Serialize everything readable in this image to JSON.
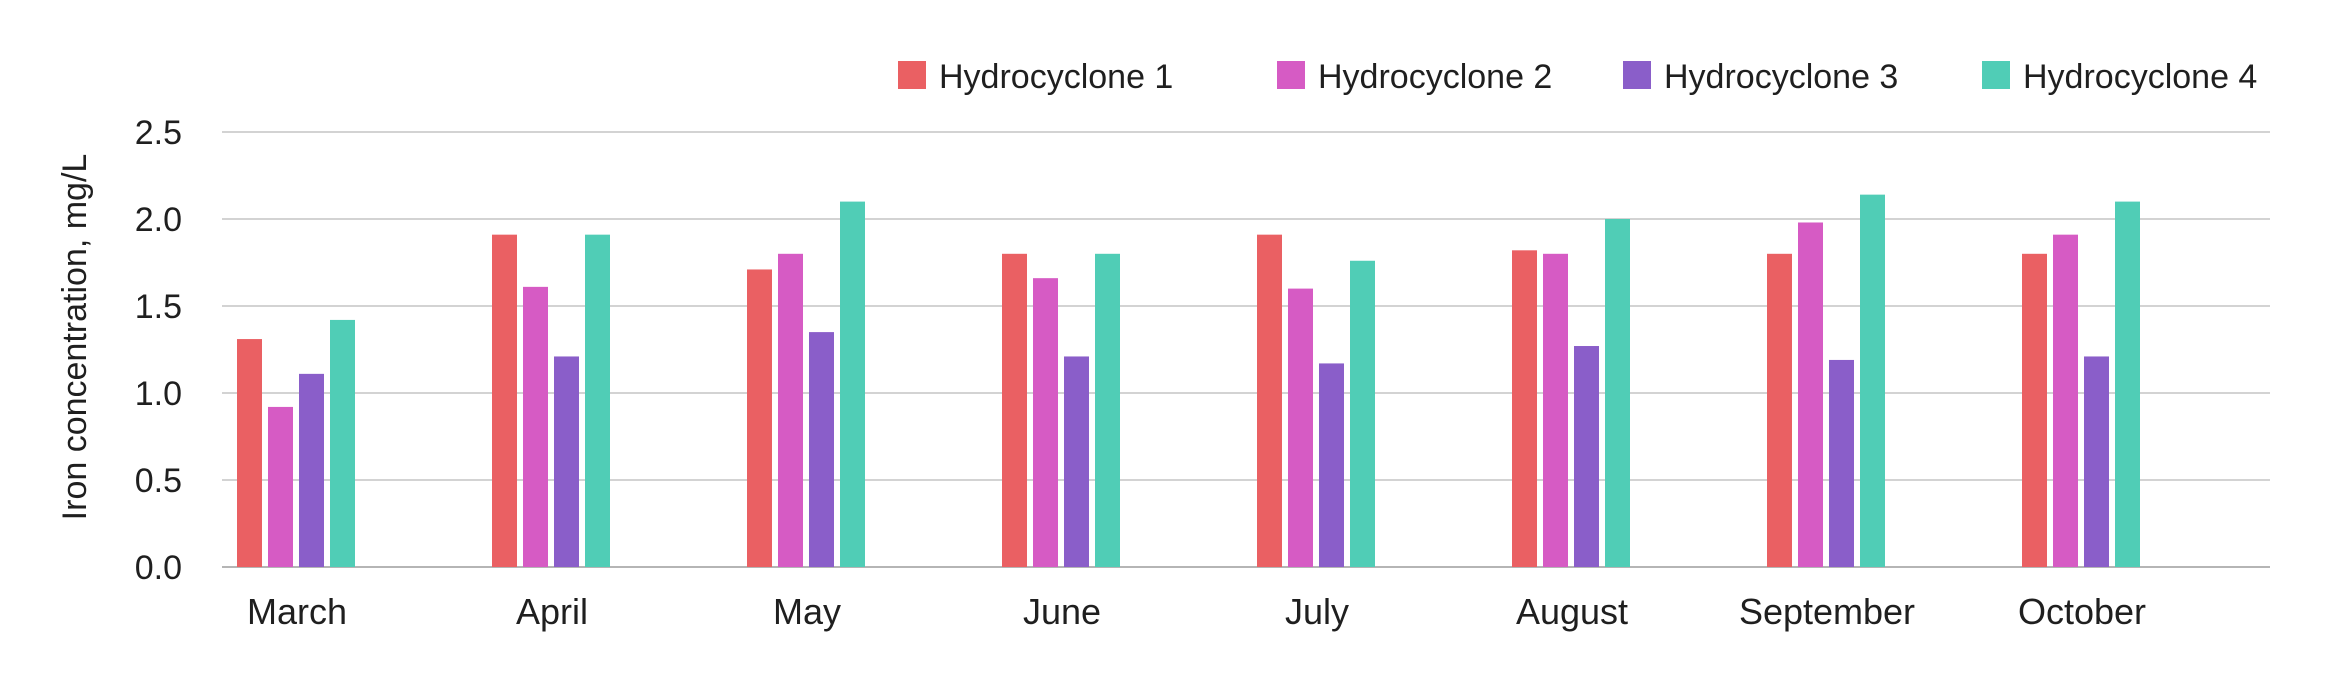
{
  "chart_data": {
    "type": "bar",
    "title": "",
    "xlabel": "",
    "ylabel": "Iron concentration, mg/L",
    "ylim": [
      0,
      2.5
    ],
    "yticks": [
      "0.0",
      "0.5",
      "1.0",
      "1.5",
      "2.0",
      "2.5"
    ],
    "grid": true,
    "legend_position": "top-right",
    "categories": [
      "March",
      "April",
      "May",
      "June",
      "July",
      "August",
      "September",
      "October"
    ],
    "series": [
      {
        "name": "Hydrocyclone 1",
        "color": "#EA6063",
        "values": [
          1.31,
          1.91,
          1.71,
          1.8,
          1.91,
          1.82,
          1.8,
          1.8
        ]
      },
      {
        "name": "Hydrocyclone 2",
        "color": "#D65BC4",
        "values": [
          0.92,
          1.61,
          1.8,
          1.66,
          1.6,
          1.8,
          1.98,
          1.91
        ]
      },
      {
        "name": "Hydrocyclone 3",
        "color": "#8A5EC9",
        "values": [
          1.11,
          1.21,
          1.35,
          1.21,
          1.17,
          1.27,
          1.19,
          1.21
        ]
      },
      {
        "name": "Hydrocyclone 4",
        "color": "#50CDB6",
        "values": [
          1.42,
          1.91,
          2.1,
          1.8,
          1.76,
          2.0,
          2.14,
          2.1
        ]
      }
    ]
  }
}
